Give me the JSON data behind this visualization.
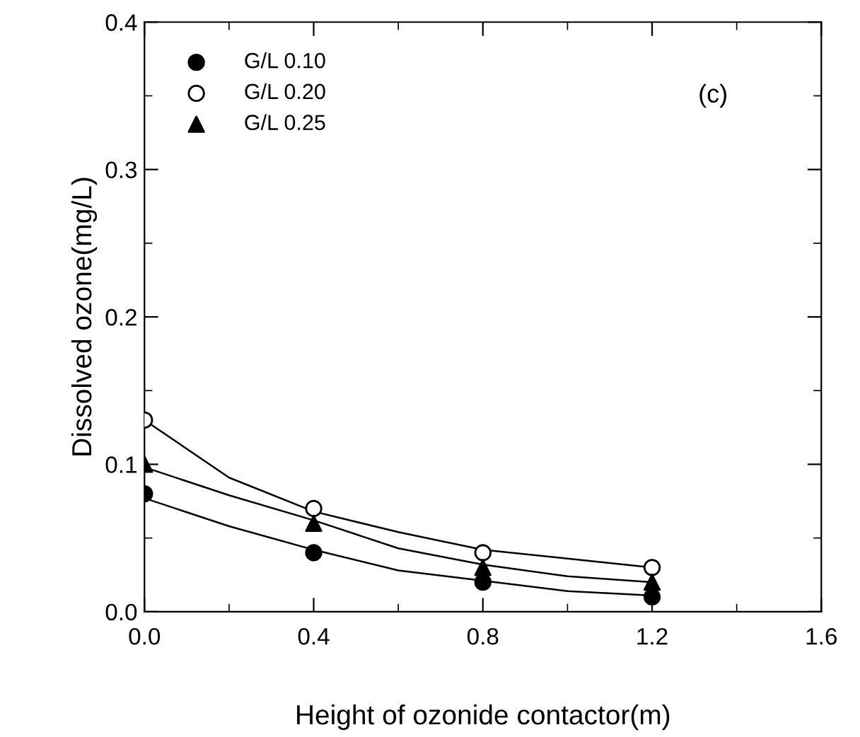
{
  "chart_data": {
    "type": "scatter",
    "xlabel": "Height of ozonide contactor(m)",
    "ylabel": "Dissolved ozone(mg/L)",
    "x": [
      0.0,
      0.4,
      0.8,
      1.2
    ],
    "series": [
      {
        "name": "G/L 0.10",
        "color": "#000000",
        "marker": "circle",
        "values": [
          0.08,
          0.04,
          0.02,
          0.01
        ]
      },
      {
        "name": "G/L 0.20",
        "color": "#ffffff",
        "marker": "circle",
        "values": [
          0.13,
          0.07,
          0.04,
          0.03
        ]
      },
      {
        "name": "G/L 0.25",
        "color": "#000000",
        "marker": "triangle",
        "values": [
          0.1,
          0.06,
          0.03,
          0.02
        ]
      },
      {
        "type": "line",
        "color": "#000000",
        "x": [
          0,
          0.2,
          0.4,
          0.6,
          0.8,
          1.0,
          1.2
        ],
        "values": [
          0.077,
          0.058,
          0.042,
          0.028,
          0.021,
          0.014,
          0.011
        ]
      },
      {
        "type": "line",
        "color": "#000000",
        "x": [
          0,
          0.2,
          0.4,
          0.6,
          0.8,
          1.0,
          1.2
        ],
        "values": [
          0.13,
          0.091,
          0.068,
          0.054,
          0.042,
          0.036,
          0.03
        ]
      },
      {
        "type": "line",
        "color": "#000000",
        "x": [
          0,
          0.2,
          0.4,
          0.6,
          0.8,
          1.0,
          1.2
        ],
        "values": [
          0.098,
          0.079,
          0.062,
          0.043,
          0.032,
          0.024,
          0.02
        ]
      }
    ],
    "xlim": [
      0,
      1.6
    ],
    "xticks": [
      {
        "value": 0,
        "label": "0.0"
      },
      0.4,
      0.8,
      1.2,
      1.6
    ],
    "ylim": [
      0,
      0.4
    ],
    "yticks": [
      {
        "value": 0,
        "label": "0.0"
      },
      0.1,
      0.2,
      0.3,
      0.4
    ],
    "annotations": [
      "(c)"
    ],
    "legend": "top left",
    "grid": false
  }
}
